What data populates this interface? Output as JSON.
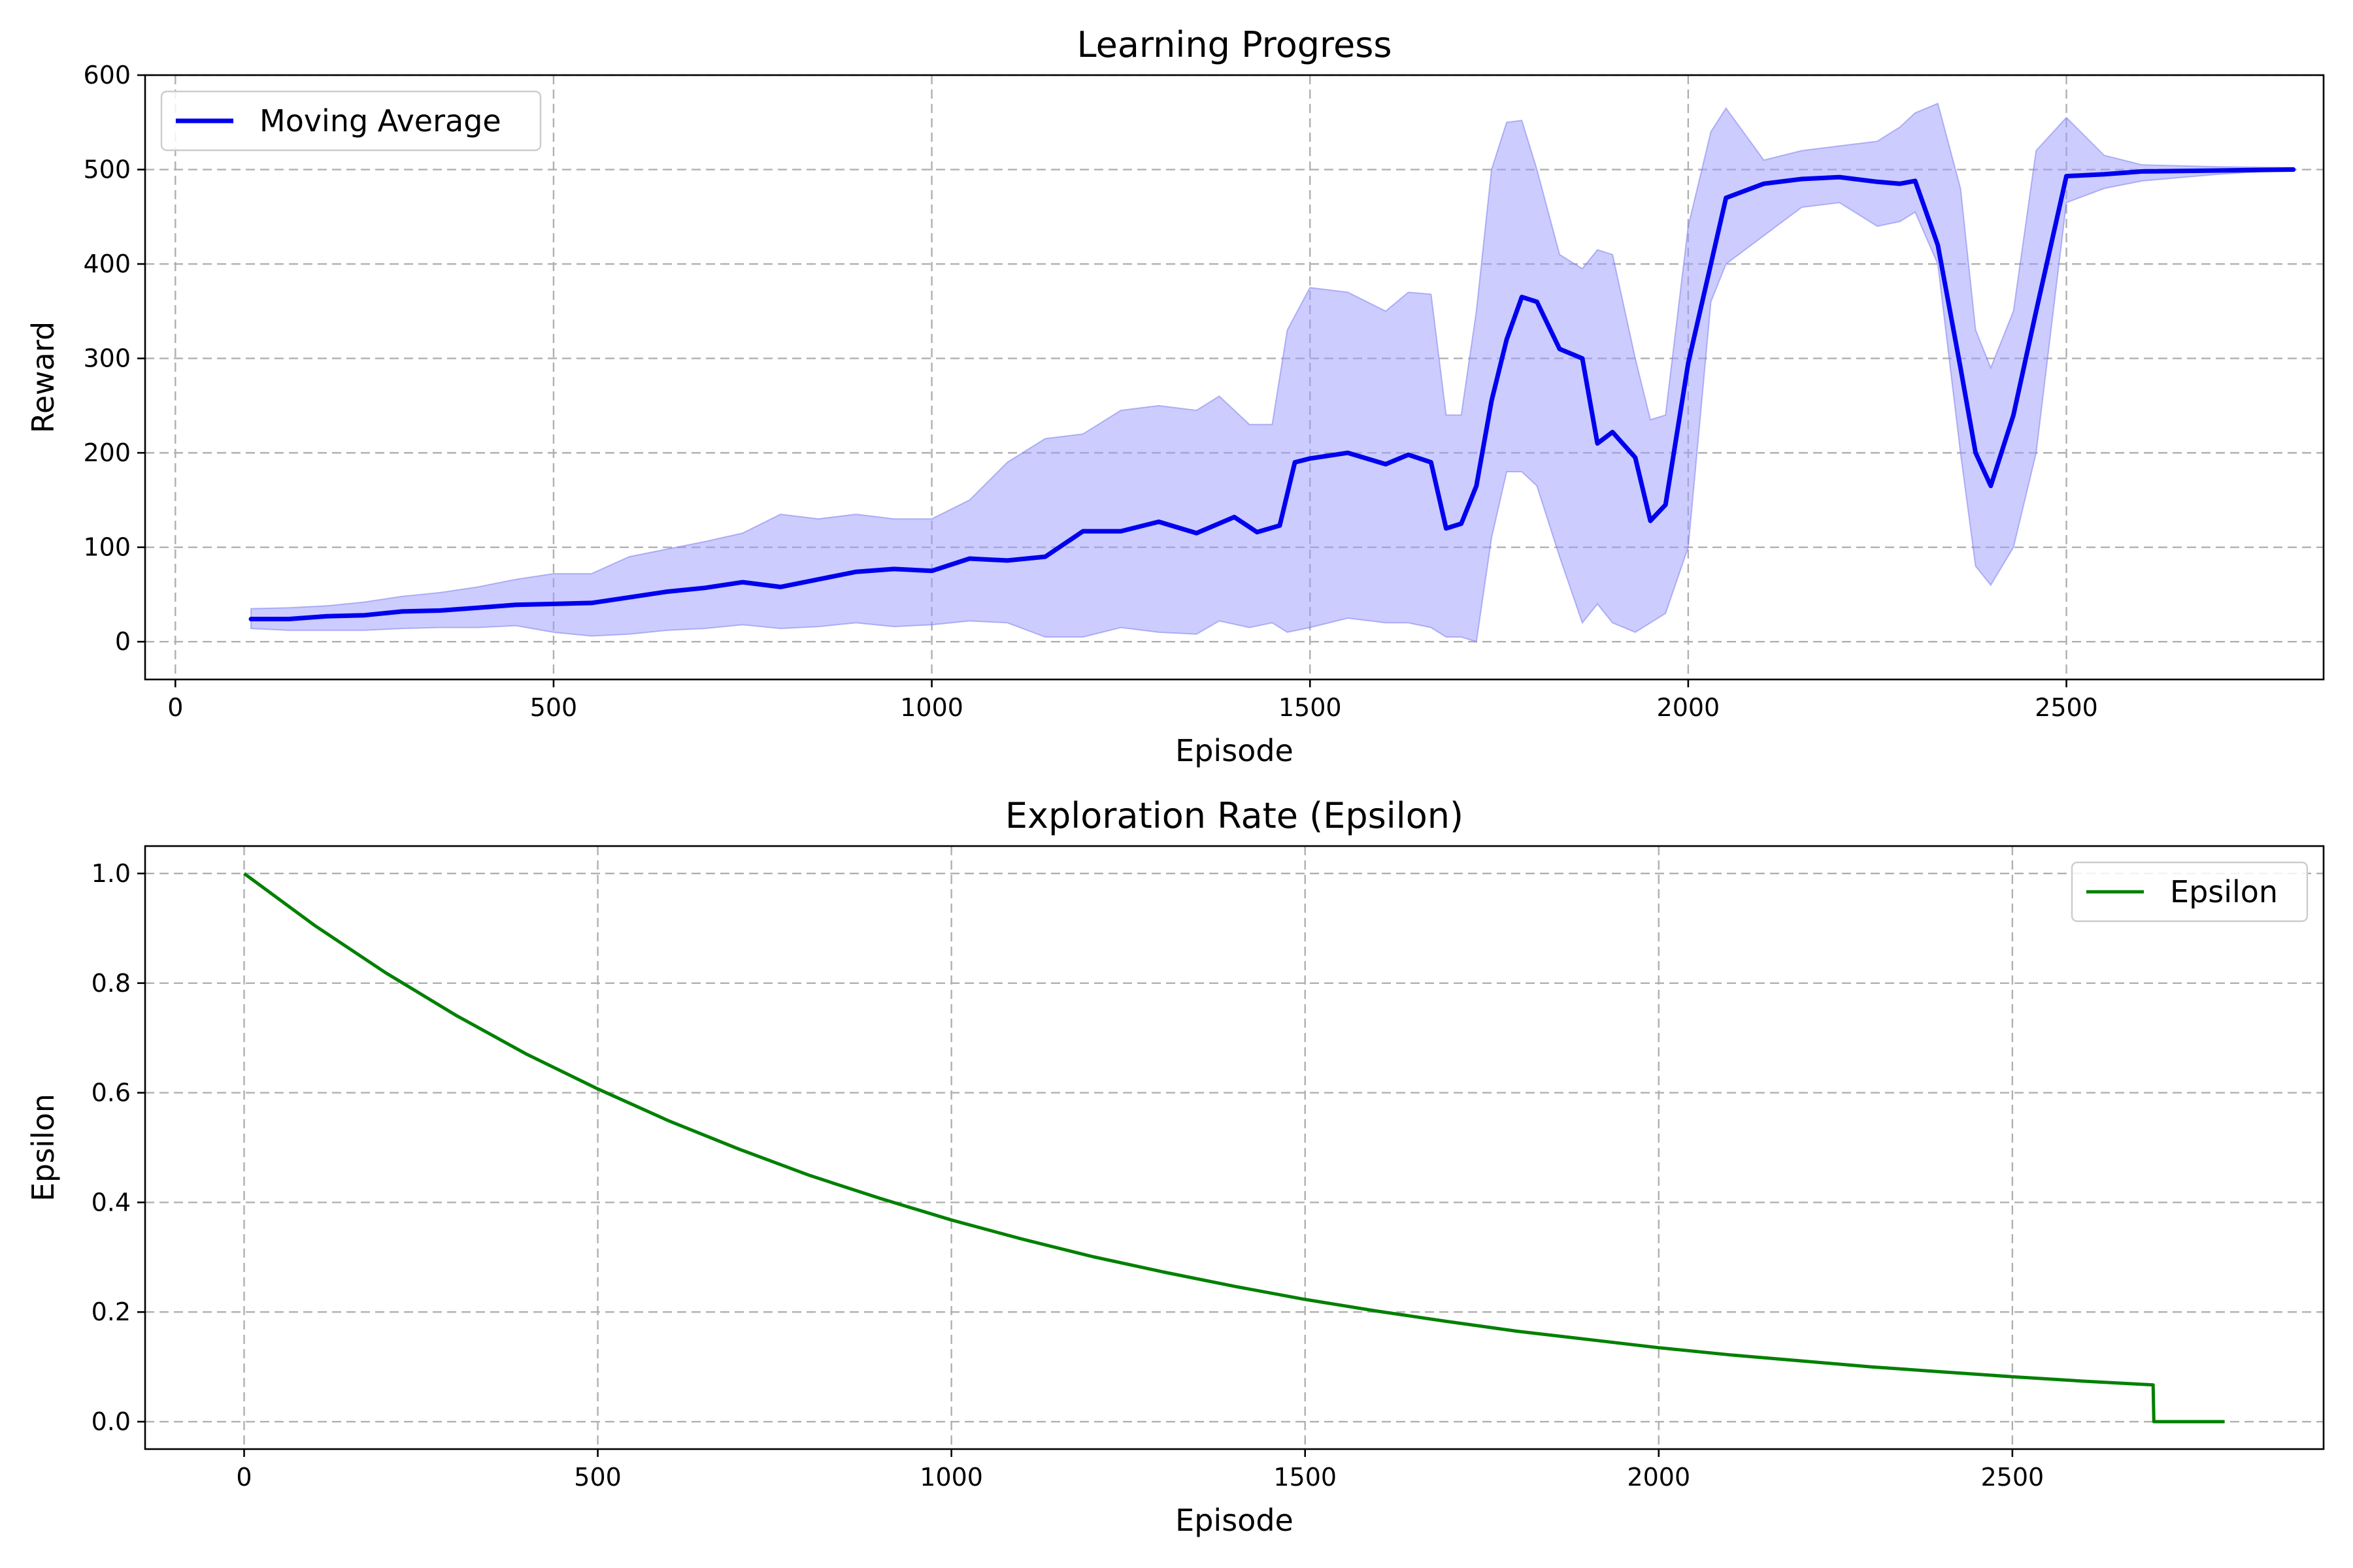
{
  "chart_data": [
    {
      "type": "area",
      "title": "Learning Progress",
      "xlabel": "Episode",
      "ylabel": "Reward",
      "xlim": [
        -40,
        2840
      ],
      "ylim": [
        -40,
        600
      ],
      "xticks": [
        0,
        500,
        1000,
        1500,
        2000,
        2500
      ],
      "yticks": [
        0,
        100,
        200,
        300,
        400,
        500,
        600
      ],
      "grid": true,
      "legend_position": "upper-left",
      "colors": {
        "line": "#0000ee",
        "band_fill": "#9999ff",
        "band_edge": "#7777ee"
      },
      "series": [
        {
          "name": "Moving Average",
          "x": [
            100,
            150,
            200,
            250,
            300,
            350,
            400,
            450,
            500,
            550,
            600,
            650,
            700,
            750,
            800,
            850,
            900,
            950,
            1000,
            1050,
            1100,
            1150,
            1200,
            1250,
            1300,
            1350,
            1400,
            1430,
            1460,
            1480,
            1500,
            1550,
            1600,
            1630,
            1660,
            1680,
            1700,
            1720,
            1740,
            1760,
            1780,
            1800,
            1830,
            1860,
            1880,
            1900,
            1930,
            1950,
            1970,
            2000,
            2030,
            2050,
            2100,
            2150,
            2200,
            2250,
            2280,
            2300,
            2330,
            2360,
            2380,
            2400,
            2430,
            2460,
            2500,
            2550,
            2600,
            2700,
            2800
          ],
          "values": [
            24,
            24,
            27,
            28,
            32,
            33,
            36,
            39,
            40,
            41,
            47,
            53,
            57,
            63,
            58,
            66,
            74,
            77,
            75,
            88,
            86,
            90,
            117,
            117,
            127,
            115,
            132,
            116,
            123,
            190,
            194,
            200,
            188,
            198,
            190,
            120,
            125,
            165,
            255,
            320,
            365,
            360,
            310,
            300,
            210,
            222,
            195,
            128,
            145,
            295,
            400,
            470,
            485,
            490,
            492,
            487,
            485,
            488,
            420,
            290,
            200,
            165,
            240,
            350,
            493,
            495,
            498,
            499,
            500
          ]
        },
        {
          "name": "",
          "x": [
            100,
            150,
            200,
            250,
            300,
            350,
            400,
            450,
            500,
            550,
            600,
            650,
            700,
            750,
            800,
            850,
            900,
            950,
            1000,
            1050,
            1100,
            1150,
            1200,
            1250,
            1300,
            1350,
            1380,
            1420,
            1450,
            1470,
            1500,
            1550,
            1600,
            1630,
            1660,
            1680,
            1700,
            1720,
            1740,
            1760,
            1780,
            1800,
            1830,
            1860,
            1880,
            1900,
            1930,
            1950,
            1970,
            2000,
            2030,
            2050,
            2100,
            2150,
            2200,
            2250,
            2280,
            2300,
            2330,
            2360,
            2380,
            2400,
            2430,
            2460,
            2500,
            2550,
            2600,
            2700,
            2800
          ],
          "upper": [
            35,
            36,
            38,
            42,
            48,
            52,
            58,
            66,
            72,
            72,
            90,
            98,
            106,
            115,
            135,
            130,
            135,
            130,
            130,
            150,
            190,
            215,
            220,
            245,
            250,
            245,
            260,
            230,
            230,
            330,
            375,
            370,
            350,
            370,
            368,
            240,
            240,
            350,
            500,
            550,
            552,
            500,
            410,
            395,
            415,
            410,
            300,
            235,
            240,
            440,
            540,
            565,
            510,
            520,
            525,
            530,
            545,
            560,
            570,
            480,
            330,
            290,
            350,
            520,
            555,
            515,
            505,
            503,
            502
          ],
          "lower": [
            14,
            12,
            12,
            12,
            14,
            15,
            15,
            17,
            10,
            6,
            8,
            12,
            14,
            18,
            14,
            16,
            20,
            16,
            18,
            22,
            20,
            5,
            5,
            15,
            10,
            8,
            22,
            15,
            20,
            10,
            15,
            25,
            20,
            20,
            15,
            5,
            5,
            0,
            110,
            180,
            180,
            165,
            90,
            20,
            40,
            20,
            10,
            20,
            30,
            100,
            360,
            400,
            430,
            460,
            465,
            440,
            445,
            455,
            400,
            200,
            80,
            60,
            100,
            200,
            465,
            480,
            488,
            495,
            500
          ]
        }
      ]
    },
    {
      "type": "line",
      "title": "Exploration Rate (Epsilon)",
      "xlabel": "Episode",
      "ylabel": "Epsilon",
      "xlim": [
        -140,
        2940
      ],
      "ylim": [
        -0.05,
        1.05
      ],
      "xticks": [
        0,
        500,
        1000,
        1500,
        2000,
        2500
      ],
      "yticks": [
        0.0,
        0.2,
        0.4,
        0.6,
        0.8,
        1.0
      ],
      "grid": true,
      "legend_position": "upper-right",
      "colors": {
        "line": "#008000"
      },
      "series": [
        {
          "name": "Epsilon",
          "x": [
            0,
            100,
            200,
            300,
            400,
            500,
            600,
            700,
            800,
            900,
            1000,
            1100,
            1200,
            1300,
            1400,
            1500,
            1600,
            1700,
            1800,
            1900,
            2000,
            2100,
            2200,
            2300,
            2400,
            2500,
            2600,
            2699,
            2700,
            2800
          ],
          "values": [
            1.0,
            0.905,
            0.819,
            0.741,
            0.67,
            0.607,
            0.549,
            0.497,
            0.449,
            0.407,
            0.368,
            0.333,
            0.301,
            0.273,
            0.247,
            0.223,
            0.202,
            0.183,
            0.165,
            0.15,
            0.135,
            0.122,
            0.111,
            0.1,
            0.091,
            0.082,
            0.074,
            0.067,
            0.0,
            0.0
          ]
        }
      ]
    }
  ]
}
